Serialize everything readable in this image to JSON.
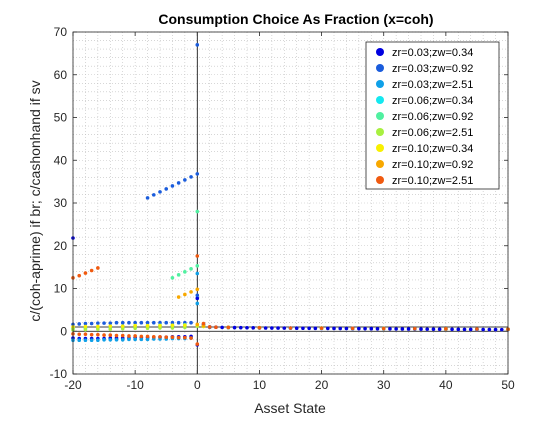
{
  "chart_data": {
    "type": "scatter",
    "title": "Consumption Choice As Fraction (x=coh)",
    "xlabel": "Asset State",
    "ylabel": "c/(coh-aprime) if br; c/cashonhand if sv",
    "xlim": [
      -20,
      50
    ],
    "ylim": [
      -10,
      70
    ],
    "xticks": [
      -20,
      -10,
      0,
      10,
      20,
      30,
      40,
      50
    ],
    "yticks": [
      -10,
      0,
      10,
      20,
      30,
      40,
      50,
      60,
      70
    ],
    "grid": "minor-dotted",
    "legend_position": "top-right",
    "reference_lines": [
      {
        "orientation": "vertical",
        "value": 0,
        "color": "#000000"
      },
      {
        "orientation": "horizontal",
        "value": 0,
        "color": "#000000"
      },
      {
        "orientation": "horizontal",
        "value": 1,
        "color": "#000000"
      }
    ],
    "series": [
      {
        "name": "zr=0.03;zw=0.34",
        "color": "#0000e0",
        "points": [
          [
            -20,
            21.8
          ],
          [
            -20,
            -1.6
          ],
          [
            -19,
            -1.7
          ],
          [
            -18,
            -1.7
          ],
          [
            -17,
            -1.7
          ],
          [
            -16,
            -1.7
          ],
          [
            -15,
            -1.7
          ],
          [
            -14,
            -1.6
          ],
          [
            -13,
            -1.6
          ],
          [
            -12,
            -1.6
          ],
          [
            -11,
            -1.6
          ],
          [
            -10,
            -1.5
          ],
          [
            -9,
            -1.5
          ],
          [
            -8,
            -1.5
          ],
          [
            -7,
            -1.4
          ],
          [
            -6,
            -1.4
          ],
          [
            -5,
            -1.4
          ],
          [
            -4,
            -1.3
          ],
          [
            -3,
            -1.3
          ],
          [
            -2,
            -1.3
          ],
          [
            -1,
            -1.2
          ],
          [
            0,
            -3.2
          ],
          [
            0,
            7.7
          ],
          [
            1,
            1.6
          ],
          [
            2,
            1.0
          ],
          [
            3,
            0.95
          ],
          [
            4,
            0.9
          ],
          [
            5,
            0.88
          ],
          [
            6,
            0.86
          ],
          [
            7,
            0.84
          ],
          [
            8,
            0.82
          ],
          [
            9,
            0.8
          ],
          [
            10,
            0.78
          ],
          [
            11,
            0.76
          ],
          [
            12,
            0.75
          ],
          [
            13,
            0.74
          ],
          [
            14,
            0.73
          ],
          [
            15,
            0.72
          ],
          [
            16,
            0.71
          ],
          [
            17,
            0.7
          ],
          [
            18,
            0.69
          ],
          [
            19,
            0.68
          ],
          [
            20,
            0.67
          ],
          [
            21,
            0.66
          ],
          [
            22,
            0.65
          ],
          [
            23,
            0.64
          ],
          [
            24,
            0.63
          ],
          [
            25,
            0.62
          ],
          [
            26,
            0.61
          ],
          [
            27,
            0.6
          ],
          [
            28,
            0.59
          ],
          [
            29,
            0.58
          ],
          [
            30,
            0.57
          ],
          [
            31,
            0.56
          ],
          [
            32,
            0.55
          ],
          [
            33,
            0.54
          ],
          [
            34,
            0.53
          ],
          [
            35,
            0.52
          ],
          [
            36,
            0.51
          ],
          [
            37,
            0.5
          ],
          [
            38,
            0.49
          ],
          [
            39,
            0.48
          ],
          [
            40,
            0.47
          ],
          [
            41,
            0.46
          ],
          [
            42,
            0.45
          ],
          [
            43,
            0.44
          ],
          [
            44,
            0.43
          ],
          [
            45,
            0.42
          ],
          [
            46,
            0.41
          ],
          [
            47,
            0.4
          ],
          [
            48,
            0.39
          ],
          [
            49,
            0.38
          ],
          [
            50,
            0.37
          ]
        ]
      },
      {
        "name": "zr=0.03;zw=0.92",
        "color": "#1a5cdc",
        "points": [
          [
            -8,
            31.2
          ],
          [
            -7,
            31.9
          ],
          [
            -6,
            32.6
          ],
          [
            -5,
            33.3
          ],
          [
            -4,
            34.0
          ],
          [
            -3,
            34.7
          ],
          [
            -2,
            35.4
          ],
          [
            -1,
            36.1
          ],
          [
            0,
            36.8
          ],
          [
            0,
            67
          ],
          [
            -20,
            1.6
          ],
          [
            -19,
            1.7
          ],
          [
            -18,
            1.8
          ],
          [
            -17,
            1.8
          ],
          [
            -16,
            1.9
          ],
          [
            -15,
            1.9
          ],
          [
            -14,
            1.9
          ],
          [
            -13,
            2.0
          ],
          [
            -12,
            2.0
          ],
          [
            -11,
            2.0
          ],
          [
            -10,
            2.0
          ],
          [
            -9,
            2.0
          ],
          [
            -8,
            2.0
          ],
          [
            -7,
            2.0
          ],
          [
            -6,
            2.0
          ],
          [
            -5,
            2.0
          ],
          [
            -4,
            2.0
          ],
          [
            -3,
            2.0
          ],
          [
            -2,
            2.0
          ],
          [
            -1,
            2.0
          ],
          [
            0,
            8.4
          ],
          [
            1,
            1.5
          ],
          [
            2,
            0.95
          ],
          [
            5,
            0.85
          ],
          [
            10,
            0.78
          ],
          [
            15,
            0.72
          ],
          [
            20,
            0.68
          ],
          [
            25,
            0.64
          ],
          [
            30,
            0.6
          ],
          [
            35,
            0.56
          ],
          [
            40,
            0.52
          ],
          [
            45,
            0.48
          ],
          [
            50,
            0.44
          ]
        ]
      },
      {
        "name": "zr=0.03;zw=2.51",
        "color": "#0fa0e8",
        "points": [
          [
            -20,
            -2.1
          ],
          [
            -19,
            -2.1
          ],
          [
            -18,
            -2.1
          ],
          [
            -17,
            -2.1
          ],
          [
            -16,
            -2.1
          ],
          [
            -15,
            -2.0
          ],
          [
            -14,
            -2.0
          ],
          [
            -13,
            -2.0
          ],
          [
            -12,
            -2.0
          ],
          [
            -11,
            -1.9
          ],
          [
            -10,
            -1.9
          ],
          [
            -9,
            -1.9
          ],
          [
            -8,
            -1.9
          ],
          [
            -7,
            -1.8
          ],
          [
            -6,
            -1.8
          ],
          [
            -5,
            -1.8
          ],
          [
            -4,
            -1.7
          ],
          [
            -3,
            -1.7
          ],
          [
            -2,
            -1.7
          ],
          [
            -1,
            -1.6
          ],
          [
            0,
            13.5
          ],
          [
            0,
            6.5
          ],
          [
            1,
            1.4
          ],
          [
            5,
            0.9
          ],
          [
            10,
            0.8
          ],
          [
            15,
            0.74
          ],
          [
            20,
            0.7
          ],
          [
            25,
            0.66
          ],
          [
            30,
            0.62
          ],
          [
            35,
            0.58
          ],
          [
            40,
            0.54
          ],
          [
            45,
            0.5
          ],
          [
            50,
            0.46
          ]
        ]
      },
      {
        "name": "zr=0.06;zw=0.34",
        "color": "#14e8f0",
        "points": [
          [
            -20,
            0.6
          ],
          [
            -18,
            0.7
          ],
          [
            -16,
            0.8
          ],
          [
            -14,
            0.9
          ],
          [
            -12,
            1.0
          ],
          [
            -10,
            1.0
          ],
          [
            -8,
            1.1
          ],
          [
            -6,
            1.1
          ],
          [
            -4,
            1.2
          ],
          [
            -2,
            1.2
          ],
          [
            0,
            1.4
          ],
          [
            1,
            1.2
          ],
          [
            5,
            0.95
          ],
          [
            10,
            0.85
          ],
          [
            20,
            0.75
          ],
          [
            30,
            0.65
          ],
          [
            40,
            0.55
          ],
          [
            50,
            0.45
          ]
        ]
      },
      {
        "name": "zr=0.06;zw=0.92",
        "color": "#50f0a0",
        "points": [
          [
            -4,
            12.5
          ],
          [
            -3,
            13.2
          ],
          [
            -2,
            13.9
          ],
          [
            -1,
            14.6
          ],
          [
            0,
            15.3
          ],
          [
            0,
            28
          ],
          [
            -20,
            0.8
          ],
          [
            -18,
            0.9
          ],
          [
            -16,
            1.0
          ],
          [
            -14,
            1.1
          ],
          [
            -12,
            1.2
          ],
          [
            -10,
            1.3
          ],
          [
            -8,
            1.3
          ],
          [
            -6,
            1.4
          ],
          [
            -4,
            1.4
          ],
          [
            -2,
            1.5
          ],
          [
            1,
            1.3
          ],
          [
            5,
            0.92
          ],
          [
            10,
            0.84
          ],
          [
            20,
            0.74
          ],
          [
            30,
            0.64
          ],
          [
            40,
            0.56
          ],
          [
            50,
            0.48
          ]
        ]
      },
      {
        "name": "zr=0.06;zw=2.51",
        "color": "#a8f040",
        "points": [
          [
            -20,
            0.3
          ],
          [
            -18,
            0.4
          ],
          [
            -16,
            0.5
          ],
          [
            -14,
            0.5
          ],
          [
            -12,
            0.6
          ],
          [
            -10,
            0.7
          ],
          [
            -8,
            0.7
          ],
          [
            -6,
            0.8
          ],
          [
            -4,
            0.8
          ],
          [
            -2,
            0.9
          ],
          [
            0,
            1.2
          ],
          [
            1,
            1.1
          ],
          [
            5,
            0.9
          ],
          [
            10,
            0.82
          ],
          [
            20,
            0.72
          ],
          [
            30,
            0.63
          ],
          [
            40,
            0.55
          ],
          [
            50,
            0.47
          ]
        ]
      },
      {
        "name": "zr=0.10;zw=0.34",
        "color": "#f8f000",
        "points": [
          [
            -20,
            1.0
          ],
          [
            -18,
            1.1
          ],
          [
            -16,
            1.1
          ],
          [
            -14,
            1.2
          ],
          [
            -12,
            1.2
          ],
          [
            -10,
            1.3
          ],
          [
            -8,
            1.3
          ],
          [
            -6,
            1.3
          ],
          [
            -4,
            1.4
          ],
          [
            -2,
            1.4
          ],
          [
            0,
            1.5
          ],
          [
            1,
            1.2
          ],
          [
            5,
            0.9
          ],
          [
            10,
            0.82
          ],
          [
            20,
            0.72
          ],
          [
            30,
            0.63
          ],
          [
            40,
            0.54
          ],
          [
            50,
            0.46
          ]
        ]
      },
      {
        "name": "zr=0.10;zw=0.92",
        "color": "#f8a800",
        "points": [
          [
            -3,
            8.0
          ],
          [
            -2,
            8.6
          ],
          [
            -1,
            9.2
          ],
          [
            0,
            9.8
          ],
          [
            0,
            1.6
          ],
          [
            1,
            1.3
          ],
          [
            5,
            0.92
          ],
          [
            10,
            0.83
          ],
          [
            20,
            0.73
          ],
          [
            30,
            0.64
          ],
          [
            40,
            0.55
          ],
          [
            50,
            0.47
          ]
        ]
      },
      {
        "name": "zr=0.10;zw=2.51",
        "color": "#f05a10",
        "points": [
          [
            -20,
            12.5
          ],
          [
            -19,
            13.0
          ],
          [
            -18,
            13.6
          ],
          [
            -17,
            14.2
          ],
          [
            -16,
            14.8
          ],
          [
            0,
            17.6
          ],
          [
            0,
            -3.0
          ],
          [
            -20,
            -0.6
          ],
          [
            -19,
            -0.7
          ],
          [
            -18,
            -0.7
          ],
          [
            -17,
            -0.8
          ],
          [
            -16,
            -0.8
          ],
          [
            -15,
            -0.9
          ],
          [
            -14,
            -0.9
          ],
          [
            -13,
            -1.0
          ],
          [
            -12,
            -1.0
          ],
          [
            -11,
            -1.1
          ],
          [
            -10,
            -1.1
          ],
          [
            -9,
            -1.2
          ],
          [
            -8,
            -1.2
          ],
          [
            -7,
            -1.3
          ],
          [
            -6,
            -1.3
          ],
          [
            -5,
            -1.4
          ],
          [
            -4,
            -1.4
          ],
          [
            -3,
            -1.5
          ],
          [
            -2,
            -1.5
          ],
          [
            -1,
            -1.6
          ],
          [
            1,
            1.8
          ],
          [
            2,
            1.0
          ],
          [
            3,
            0.95
          ],
          [
            5,
            0.9
          ],
          [
            10,
            0.82
          ],
          [
            15,
            0.76
          ],
          [
            20,
            0.72
          ],
          [
            25,
            0.68
          ],
          [
            30,
            0.64
          ],
          [
            35,
            0.6
          ],
          [
            40,
            0.56
          ],
          [
            45,
            0.52
          ],
          [
            50,
            0.48
          ]
        ]
      }
    ]
  }
}
